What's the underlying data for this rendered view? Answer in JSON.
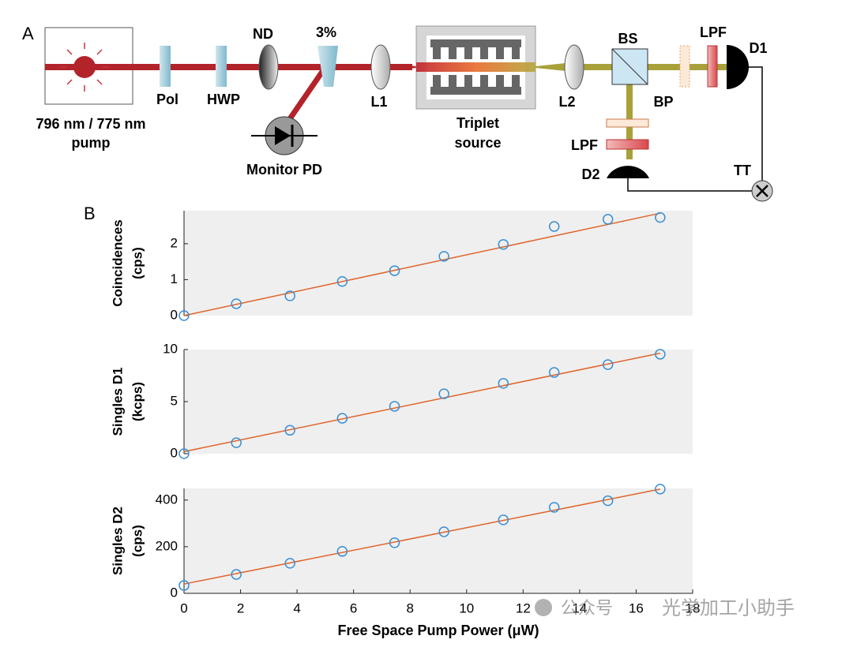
{
  "panel_labels": {
    "a": "A",
    "b": "B"
  },
  "diagram": {
    "labels": {
      "pump_wavelength": "796 nm / 775 nm",
      "pump": "pump",
      "pol": "Pol",
      "hwp": "HWP",
      "nd": "ND",
      "tap": "3%",
      "l1": "L1",
      "monitor_pd": "Monitor PD",
      "source_line1": "Triplet",
      "source_line2": "source",
      "l2": "L2",
      "bs": "BS",
      "bp": "BP",
      "lpf1": "LPF",
      "d1": "D1",
      "lpf2": "LPF",
      "d2": "D2",
      "tt": "TT"
    }
  },
  "watermark": {
    "account": "公众号",
    "name": "光学加工小助手"
  },
  "chart_data": [
    {
      "type": "scatter",
      "x": [
        0,
        1.85,
        3.75,
        5.6,
        7.45,
        9.2,
        11.3,
        13.1,
        15,
        16.85
      ],
      "values": [
        0,
        0.33,
        0.55,
        0.95,
        1.25,
        1.65,
        1.98,
        2.48,
        2.68,
        2.73
      ],
      "color": "#3b8fd4",
      "fit": {
        "x": [
          0,
          16.85
        ],
        "values": [
          0,
          2.85
        ],
        "color": "#e0642a"
      },
      "xlim": [
        0,
        18
      ],
      "ylim": [
        0,
        2.92
      ],
      "yticks": [
        0,
        1,
        2
      ],
      "ylabel": [
        "Coincidences",
        "(cps)"
      ]
    },
    {
      "type": "scatter",
      "x": [
        0,
        1.85,
        3.75,
        5.6,
        7.45,
        9.2,
        11.3,
        13.1,
        15,
        16.85
      ],
      "values": [
        0,
        1.05,
        2.25,
        3.4,
        4.55,
        5.75,
        6.75,
        7.8,
        8.55,
        9.55
      ],
      "color": "#3b8fd4",
      "fit": {
        "x": [
          0,
          16.85
        ],
        "values": [
          0.2,
          9.65
        ],
        "color": "#e0642a"
      },
      "xlim": [
        0,
        18
      ],
      "ylim": [
        0,
        10
      ],
      "yticks": [
        0,
        5,
        10
      ],
      "ylabel": [
        "Singles D1",
        "(kcps)"
      ]
    },
    {
      "type": "scatter",
      "x": [
        0,
        1.85,
        3.75,
        5.6,
        7.45,
        9.2,
        11.3,
        13.1,
        15,
        16.85
      ],
      "values": [
        34,
        81,
        129,
        180,
        217,
        264,
        315,
        369,
        397,
        447
      ],
      "color": "#3b8fd4",
      "fit": {
        "x": [
          0,
          16.85
        ],
        "values": [
          40,
          447
        ],
        "color": "#e0642a"
      },
      "xlim": [
        0,
        18
      ],
      "ylim": [
        0,
        450
      ],
      "yticks": [
        0,
        200,
        400
      ],
      "ylabel": [
        "Singles D2",
        "(cps)"
      ],
      "xticks": [
        0,
        2,
        4,
        6,
        8,
        10,
        12,
        14,
        16,
        18
      ],
      "xlabel": "Free Space Pump Power (μW)"
    }
  ]
}
